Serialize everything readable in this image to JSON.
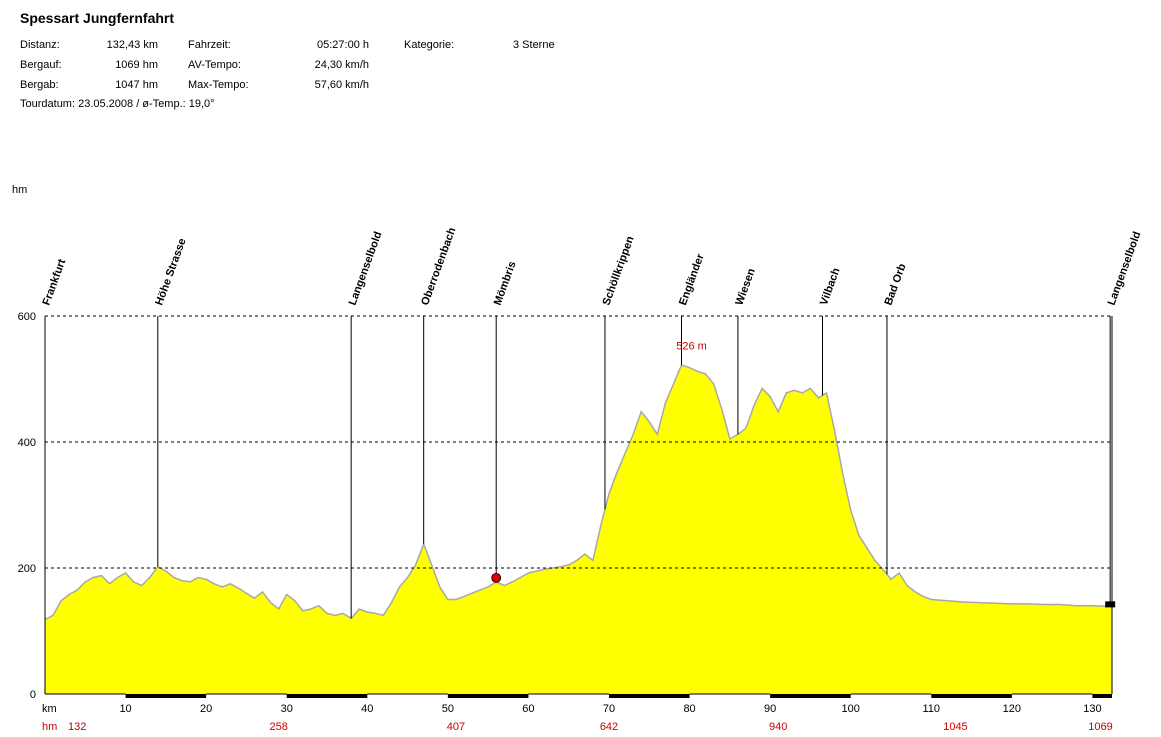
{
  "header": {
    "title": "Spessart Jungfernfahrt",
    "stats": [
      {
        "label": "Distanz:",
        "value": "132,43 km"
      },
      {
        "label": "Bergauf:",
        "value": "1069 hm"
      },
      {
        "label": "Bergab:",
        "value": "1047 hm"
      },
      {
        "label": "Fahrzeit:",
        "value": "05:27:00 h"
      },
      {
        "label": "AV-Tempo:",
        "value": "24,30 km/h"
      },
      {
        "label": "Max-Tempo:",
        "value": "57,60 km/h"
      },
      {
        "label": "Kategorie:",
        "value": "3 Sterne"
      }
    ],
    "tour_line": "Tourdatum: 23.05.2008  /  ø-Temp.: 19,0°"
  },
  "chart_data": {
    "type": "area",
    "xlabel": "km",
    "ylabel": "hm",
    "xlim": [
      0,
      132.43
    ],
    "ylim": [
      0,
      600
    ],
    "yticks": [
      0,
      200,
      400,
      600
    ],
    "xticks": [
      10,
      20,
      30,
      40,
      50,
      60,
      70,
      80,
      90,
      100,
      110,
      120,
      130
    ],
    "fill_color": "#ffff00",
    "line_color": "#a8a8a8",
    "grid_color": "#000000",
    "label_color": "#cc0000",
    "peak_annotation": {
      "km": 80,
      "value": 526,
      "text": "526 m"
    },
    "cumulative_row_label": "hm",
    "cumulative_climb": [
      {
        "km": 4,
        "value": "132"
      },
      {
        "km": 29,
        "value": "258"
      },
      {
        "km": 51,
        "value": "407"
      },
      {
        "km": 70,
        "value": "642"
      },
      {
        "km": 91,
        "value": "940"
      },
      {
        "km": 113,
        "value": "1045"
      },
      {
        "km": 131,
        "value": "1069"
      }
    ],
    "waypoints": [
      {
        "km": 0,
        "name": "Frankfurt"
      },
      {
        "km": 14,
        "name": "Höhe Strasse"
      },
      {
        "km": 38,
        "name": "Langenselbold"
      },
      {
        "km": 47,
        "name": "Oberrodenbach"
      },
      {
        "km": 56,
        "name": "Mömbris"
      },
      {
        "km": 69.5,
        "name": "Schöllkrippen"
      },
      {
        "km": 79,
        "name": "Engländer"
      },
      {
        "km": 86,
        "name": "Wiesen"
      },
      {
        "km": 96.5,
        "name": "Vilbach"
      },
      {
        "km": 104.5,
        "name": "Bad Orb"
      },
      {
        "km": 132.2,
        "name": "Langenselbold"
      }
    ],
    "series": [
      {
        "x": [
          0,
          1,
          2,
          3,
          4,
          5,
          6,
          7,
          8,
          9,
          10,
          11,
          12,
          13,
          14,
          15,
          16,
          17,
          18,
          19,
          20,
          21,
          22,
          23,
          24,
          25,
          26,
          27,
          28,
          29,
          30,
          31,
          32,
          33,
          34,
          35,
          36,
          37,
          38,
          39,
          40,
          41,
          42,
          43,
          44,
          45,
          46,
          47,
          48,
          49,
          50,
          51,
          52,
          53,
          54,
          55,
          56,
          57,
          58,
          59,
          60,
          61,
          62,
          63,
          64,
          65,
          66,
          67,
          68,
          69,
          70,
          71,
          72,
          73,
          74,
          75,
          76,
          77,
          78,
          79,
          80,
          81,
          82,
          83,
          84,
          85,
          86,
          87,
          88,
          89,
          90,
          91,
          92,
          93,
          94,
          95,
          96,
          97,
          98,
          99,
          100,
          101,
          102,
          103,
          104,
          105,
          106,
          107,
          108,
          109,
          110,
          112,
          114,
          116,
          118,
          120,
          122,
          124,
          126,
          128,
          130,
          132.43
        ],
        "values": [
          118,
          125,
          148,
          158,
          165,
          178,
          185,
          188,
          175,
          185,
          192,
          178,
          172,
          185,
          202,
          195,
          185,
          180,
          178,
          185,
          182,
          175,
          170,
          175,
          168,
          160,
          152,
          162,
          145,
          135,
          158,
          148,
          132,
          135,
          140,
          128,
          125,
          128,
          120,
          135,
          130,
          128,
          125,
          145,
          170,
          185,
          205,
          238,
          205,
          170,
          150,
          150,
          155,
          160,
          165,
          170,
          178,
          172,
          178,
          185,
          192,
          195,
          198,
          200,
          202,
          205,
          212,
          222,
          212,
          268,
          318,
          352,
          382,
          412,
          448,
          432,
          412,
          462,
          492,
          522,
          518,
          512,
          508,
          492,
          452,
          405,
          412,
          422,
          458,
          485,
          472,
          448,
          478,
          482,
          478,
          485,
          470,
          478,
          418,
          350,
          292,
          252,
          232,
          212,
          198,
          182,
          192,
          172,
          162,
          155,
          150,
          148,
          146,
          145,
          144,
          143,
          143,
          142,
          142,
          140,
          140,
          139
        ]
      }
    ]
  }
}
